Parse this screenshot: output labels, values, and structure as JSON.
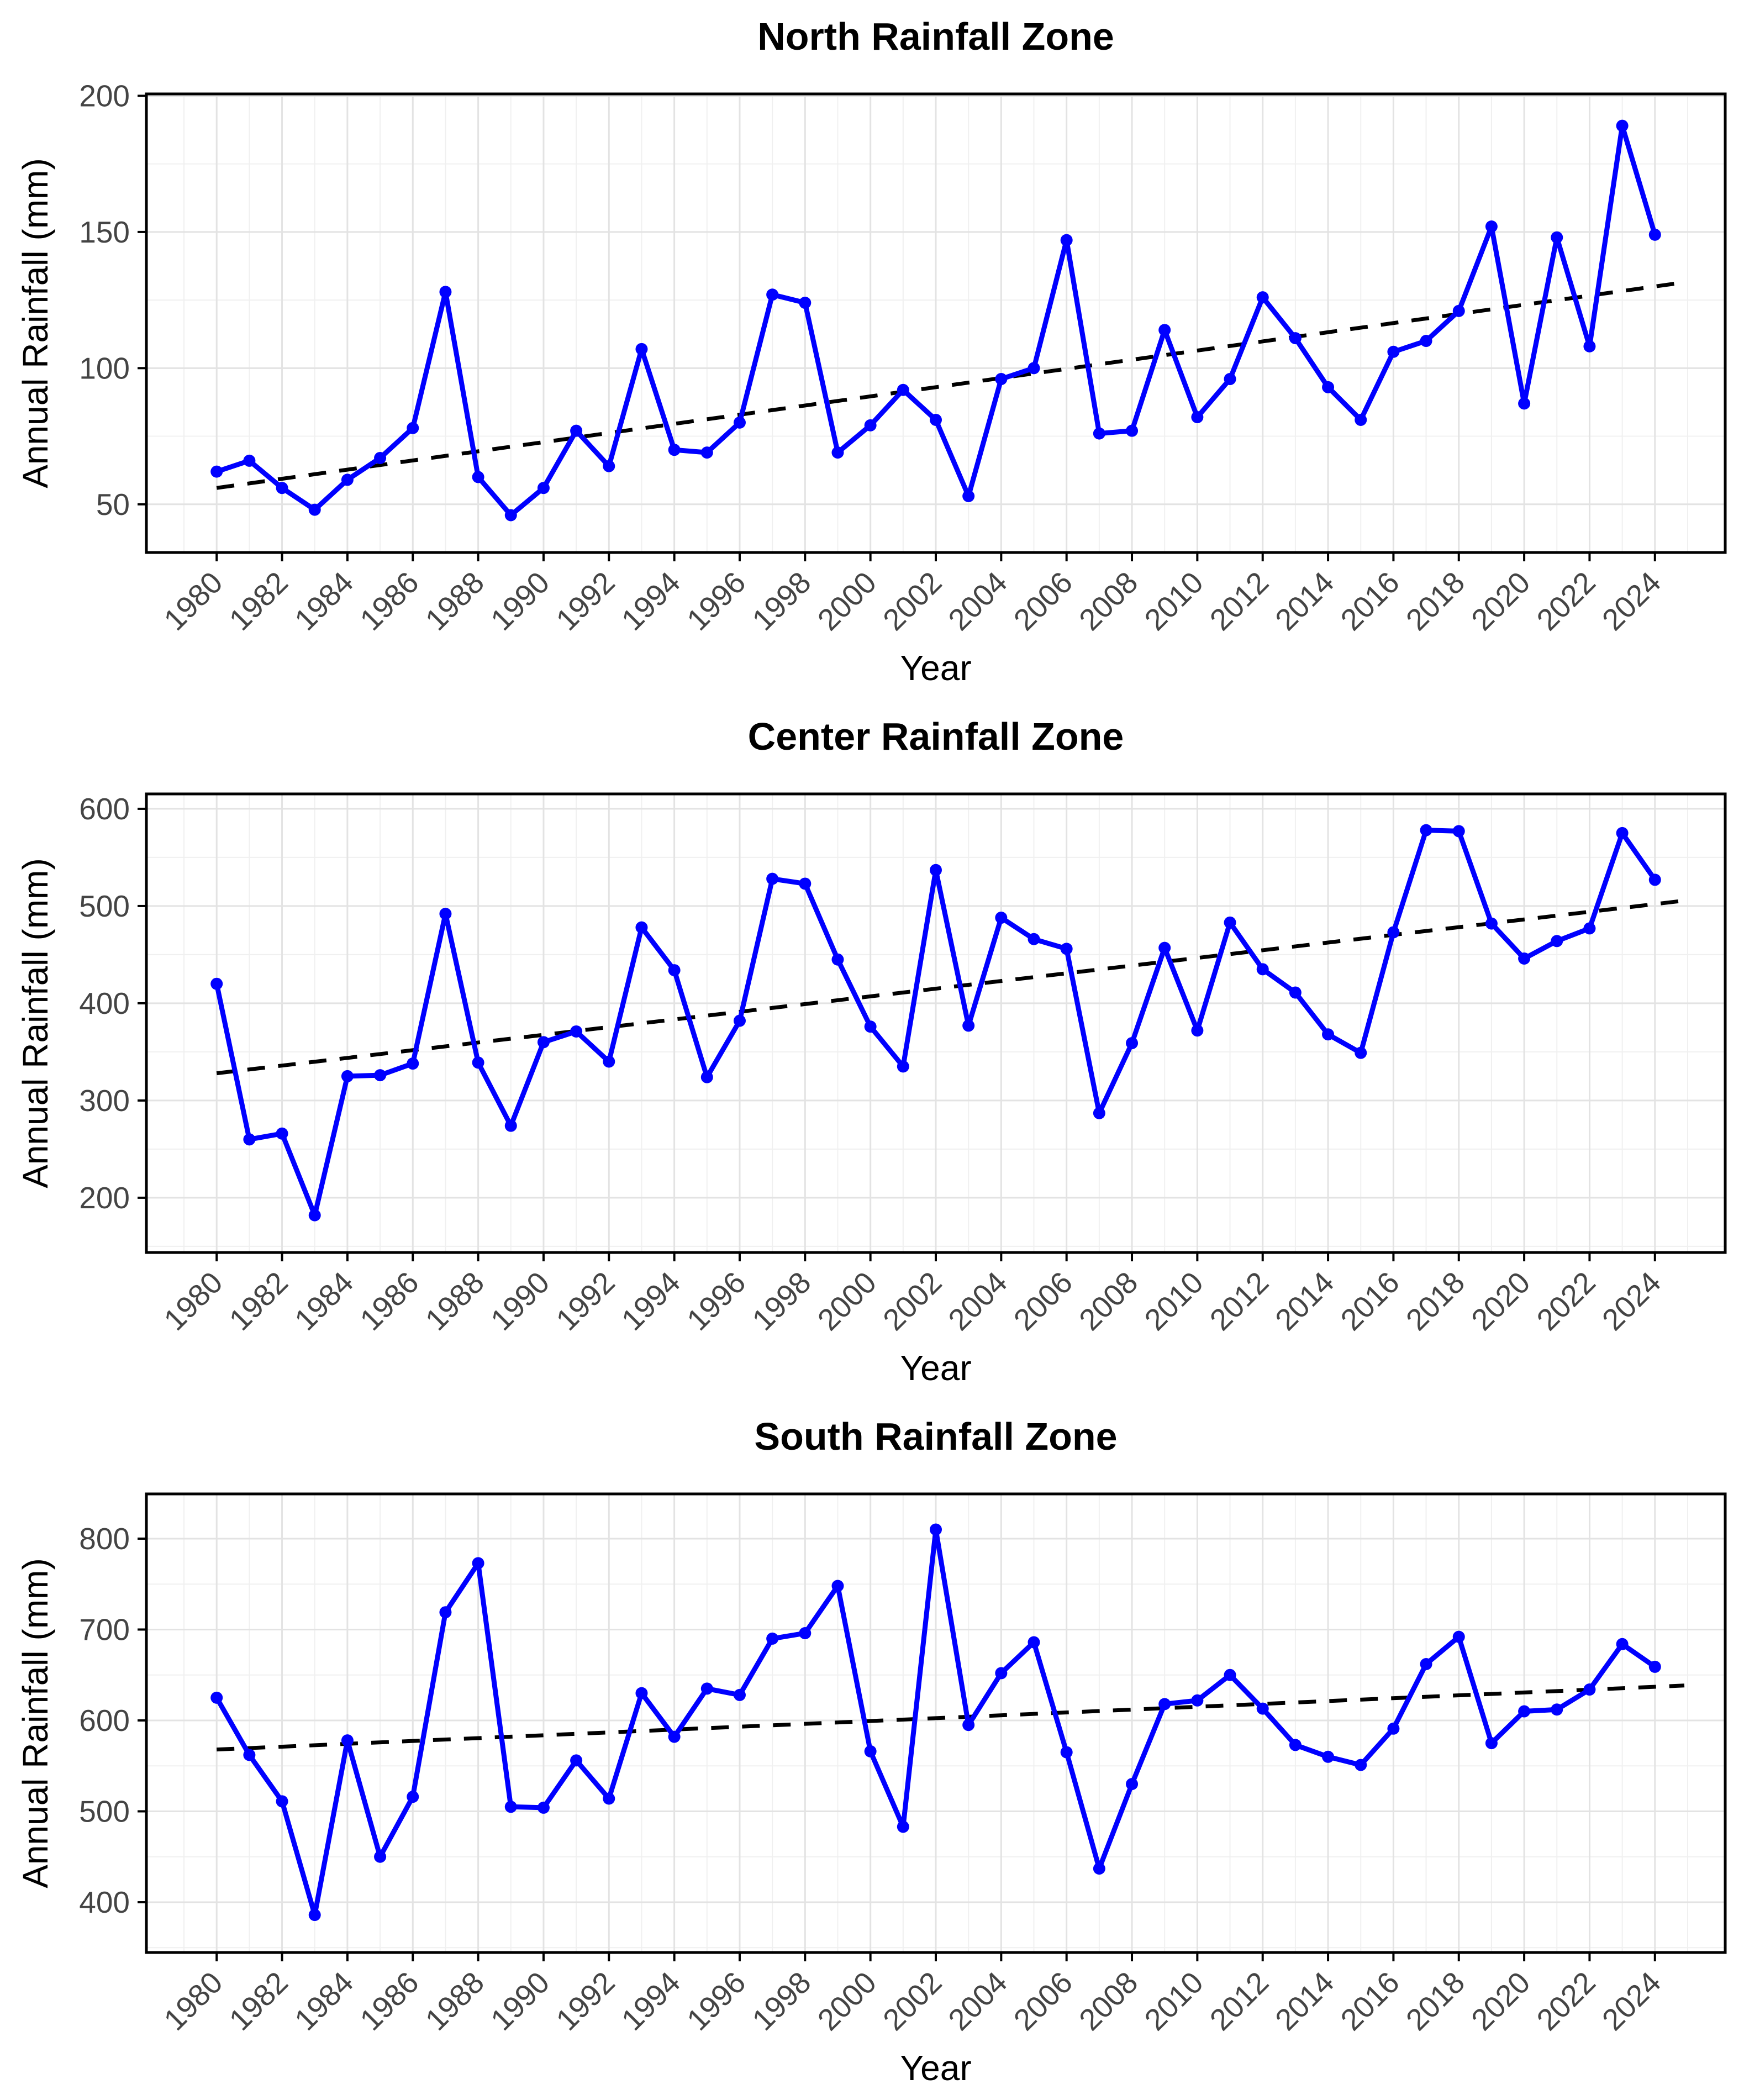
{
  "style": {
    "line_color": "#0000FF",
    "trend_color": "#000000",
    "grid_major_color": "#E3E3E3",
    "grid_minor_color": "#F0F0F0",
    "panel_border_color": "#000000",
    "panel_fill": "#FFFFFF",
    "tick_label_color": "#444444",
    "title_color": "#000000"
  },
  "chart_data": [
    {
      "type": "line",
      "title": "North Rainfall Zone",
      "xlabel": "Year",
      "ylabel": "Annual Rainfall (mm)",
      "legend": "none",
      "grid": "on",
      "x": [
        1980,
        1981,
        1982,
        1983,
        1984,
        1985,
        1986,
        1987,
        1988,
        1989,
        1990,
        1991,
        1992,
        1993,
        1994,
        1995,
        1996,
        1997,
        1998,
        1999,
        2000,
        2001,
        2002,
        2003,
        2004,
        2005,
        2006,
        2007,
        2008,
        2009,
        2010,
        2011,
        2012,
        2013,
        2014,
        2015,
        2016,
        2017,
        2018,
        2019,
        2020,
        2021,
        2022,
        2023,
        2024
      ],
      "series": [
        {
          "name": "Annual Rainfall",
          "values": [
            62,
            66,
            56,
            48,
            59,
            67,
            78,
            128,
            60,
            46,
            56,
            77,
            64,
            107,
            70,
            69,
            80,
            127,
            124,
            69,
            79,
            92,
            81,
            53,
            96,
            100,
            147,
            76,
            77,
            114,
            82,
            96,
            126,
            111,
            93,
            81,
            106,
            110,
            121,
            152,
            87,
            148,
            108,
            189,
            149
          ]
        }
      ],
      "trend": {
        "style": "dashed",
        "x1": 1980,
        "y1": 56,
        "x2": 2024,
        "y2": 130
      },
      "xlim": [
        1977.85,
        2026.15
      ],
      "ylim": [
        32.3,
        200.7
      ],
      "xticks": [
        1980,
        1982,
        1984,
        1986,
        1988,
        1990,
        1992,
        1994,
        1996,
        1998,
        2000,
        2002,
        2004,
        2006,
        2008,
        2010,
        2012,
        2014,
        2016,
        2018,
        2020,
        2022,
        2024
      ],
      "yticks": [
        50,
        100,
        150,
        200
      ],
      "yminor": [
        75,
        125,
        175
      ]
    },
    {
      "type": "line",
      "title": "Center Rainfall Zone",
      "xlabel": "Year",
      "ylabel": "Annual Rainfall (mm)",
      "legend": "none",
      "grid": "on",
      "x": [
        1980,
        1981,
        1982,
        1983,
        1984,
        1985,
        1986,
        1987,
        1988,
        1989,
        1990,
        1991,
        1992,
        1993,
        1994,
        1995,
        1996,
        1997,
        1998,
        1999,
        2000,
        2001,
        2002,
        2003,
        2004,
        2005,
        2006,
        2007,
        2008,
        2009,
        2010,
        2011,
        2012,
        2013,
        2014,
        2015,
        2016,
        2017,
        2018,
        2019,
        2020,
        2021,
        2022,
        2023,
        2024
      ],
      "series": [
        {
          "name": "Annual Rainfall",
          "values": [
            420,
            260,
            266,
            182,
            325,
            326,
            338,
            492,
            339,
            274,
            360,
            371,
            340,
            478,
            434,
            324,
            382,
            528,
            523,
            445,
            376,
            335,
            537,
            377,
            488,
            466,
            456,
            287,
            359,
            457,
            372,
            483,
            435,
            411,
            368,
            349,
            473,
            578,
            577,
            482,
            446,
            464,
            477,
            575,
            527
          ]
        }
      ],
      "trend": {
        "style": "dashed",
        "x1": 1980,
        "y1": 328,
        "x2": 2024,
        "y2": 502
      },
      "xlim": [
        1977.85,
        2026.15
      ],
      "ylim": [
        143.7,
        615.3
      ],
      "xticks": [
        1980,
        1982,
        1984,
        1986,
        1988,
        1990,
        1992,
        1994,
        1996,
        1998,
        2000,
        2002,
        2004,
        2006,
        2008,
        2010,
        2012,
        2014,
        2016,
        2018,
        2020,
        2022,
        2024
      ],
      "yticks": [
        200,
        300,
        400,
        500,
        600
      ],
      "yminor": [
        150,
        250,
        350,
        450,
        550
      ]
    },
    {
      "type": "line",
      "title": "South Rainfall Zone",
      "xlabel": "Year",
      "ylabel": "Annual Rainfall (mm)",
      "legend": "none",
      "grid": "on",
      "x": [
        1980,
        1981,
        1982,
        1983,
        1984,
        1985,
        1986,
        1987,
        1988,
        1989,
        1990,
        1991,
        1992,
        1993,
        1994,
        1995,
        1996,
        1997,
        1998,
        1999,
        2000,
        2001,
        2002,
        2003,
        2004,
        2005,
        2006,
        2007,
        2008,
        2009,
        2010,
        2011,
        2012,
        2013,
        2014,
        2015,
        2016,
        2017,
        2018,
        2019,
        2020,
        2021,
        2022,
        2023,
        2024
      ],
      "series": [
        {
          "name": "Annual Rainfall",
          "values": [
            625,
            562,
            511,
            386,
            578,
            450,
            516,
            719,
            773,
            505,
            504,
            556,
            514,
            630,
            582,
            635,
            628,
            690,
            696,
            748,
            566,
            483,
            810,
            595,
            652,
            686,
            565,
            437,
            530,
            618,
            622,
            650,
            613,
            573,
            560,
            551,
            591,
            662,
            692,
            575,
            610,
            612,
            634,
            684,
            659
          ]
        }
      ],
      "trend": {
        "style": "dashed",
        "x1": 1980,
        "y1": 568,
        "x2": 2024,
        "y2": 637
      },
      "xlim": [
        1977.85,
        2026.15
      ],
      "ylim": [
        344.7,
        849.2
      ],
      "xticks": [
        1980,
        1982,
        1984,
        1986,
        1988,
        1990,
        1992,
        1994,
        1996,
        1998,
        2000,
        2002,
        2004,
        2006,
        2008,
        2010,
        2012,
        2014,
        2016,
        2018,
        2020,
        2022,
        2024
      ],
      "yticks": [
        400,
        500,
        600,
        700,
        800
      ],
      "yminor": [
        350,
        450,
        550,
        650,
        750
      ]
    }
  ]
}
